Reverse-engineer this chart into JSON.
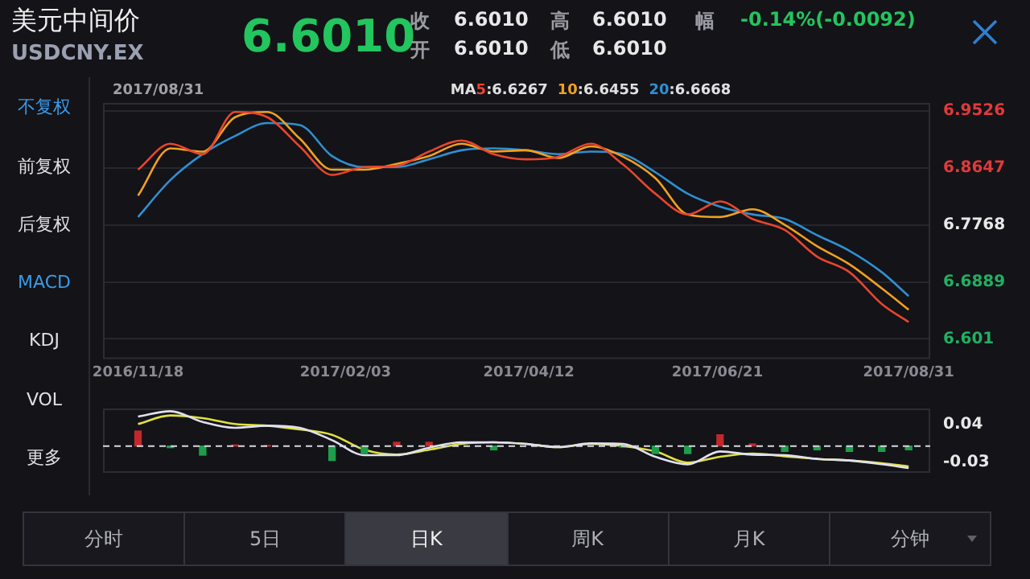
{
  "chart_data": [
    {
      "type": "other",
      "title": "美元中间价",
      "subtitle": "USDCNY.EX",
      "annotations": [
        "6.6010",
        "收",
        "6.6010",
        "高",
        "6.6010",
        "幅",
        "-0.14%(-0.0092)",
        "开",
        "6.6010",
        "低",
        "6.6010"
      ]
    },
    {
      "type": "other",
      "annotations": [
        "不复权",
        "前复权",
        "后复权",
        "MACD",
        "KDJ",
        "VOL",
        "更多"
      ]
    },
    {
      "type": "line",
      "x": [
        "2016-11-18",
        "2016-11-30",
        "2016-12-12",
        "2016-12-24",
        "2017-01-05",
        "2017-01-17",
        "2017-01-29",
        "2017-02-10",
        "2017-02-22",
        "2017-03-06",
        "2017-03-18",
        "2017-03-30",
        "2017-04-11",
        "2017-04-23",
        "2017-05-05",
        "2017-05-17",
        "2017-05-29",
        "2017-06-10",
        "2017-06-22",
        "2017-07-04",
        "2017-07-16",
        "2017-07-28",
        "2017-08-09",
        "2017-08-21",
        "2017-08-31"
      ],
      "xlim": [
        "2016-11-05",
        "2017-09-08"
      ],
      "xticks": [
        {
          "value": "2016-11-18",
          "label": "2016/11/18"
        },
        {
          "value": "2017-02-03",
          "label": "2017/02/03"
        },
        {
          "value": "2017-04-12",
          "label": "2017/04/12"
        },
        {
          "value": "2017-06-21",
          "label": "2017/06/21"
        },
        {
          "value": "2017-08-31",
          "label": "2017/08/31"
        }
      ],
      "ylim": [
        6.57,
        6.965
      ],
      "yticks": [
        6.601,
        6.6889,
        6.7768,
        6.8647,
        6.9526
      ],
      "grid": "y",
      "legend": "top",
      "legend_title": "MA",
      "annotations": [
        "2017/08/31",
        ":6.6267",
        ":6.6455",
        ":6.6668"
      ],
      "series": [
        {
          "name": "5",
          "color": "#e8452c",
          "values": [
            6.862,
            6.902,
            6.886,
            6.951,
            6.943,
            6.898,
            6.854,
            6.866,
            6.868,
            6.89,
            6.907,
            6.886,
            6.878,
            6.882,
            6.902,
            6.87,
            6.825,
            6.793,
            6.813,
            6.786,
            6.769,
            6.728,
            6.704,
            6.655,
            6.627
          ]
        },
        {
          "name": "10",
          "color": "#f0a020",
          "values": [
            6.822,
            6.895,
            6.89,
            6.943,
            6.951,
            6.91,
            6.862,
            6.862,
            6.871,
            6.883,
            6.902,
            6.89,
            6.892,
            6.88,
            6.898,
            6.882,
            6.849,
            6.793,
            6.789,
            6.801,
            6.777,
            6.744,
            6.716,
            6.679,
            6.646
          ]
        },
        {
          "name": "20",
          "color": "#2f8fd0",
          "values": [
            6.789,
            6.846,
            6.886,
            6.914,
            6.934,
            6.931,
            6.883,
            6.866,
            6.866,
            6.878,
            6.892,
            6.895,
            6.892,
            6.886,
            6.89,
            6.886,
            6.858,
            6.825,
            6.805,
            6.793,
            6.786,
            6.761,
            6.737,
            6.704,
            6.667
          ]
        }
      ]
    },
    {
      "type": "bar",
      "x": [
        "2016-11-18",
        "2016-11-30",
        "2016-12-12",
        "2016-12-24",
        "2017-01-05",
        "2017-01-17",
        "2017-01-29",
        "2017-02-10",
        "2017-02-22",
        "2017-03-06",
        "2017-03-18",
        "2017-03-30",
        "2017-04-11",
        "2017-04-23",
        "2017-05-05",
        "2017-05-17",
        "2017-05-29",
        "2017-06-10",
        "2017-06-22",
        "2017-07-04",
        "2017-07-16",
        "2017-07-28",
        "2017-08-09",
        "2017-08-21",
        "2017-08-31"
      ],
      "xlim": [
        "2016-11-05",
        "2017-09-08"
      ],
      "ylim": [
        -0.05,
        0.07
      ],
      "yticks": [
        -0.03,
        0.04
      ],
      "tick_labels": "y",
      "ref_lines": [
        {
          "axis": "y",
          "value": 0,
          "color": "#d8d8e0",
          "line_style": "dashed"
        }
      ],
      "series": [
        {
          "type": "bar",
          "colors": [
            "#c0282c",
            "#1e9e4a",
            "#1e9e4a",
            "#c0282c",
            "#c0282c",
            null,
            "#1e9e4a",
            "#1e9e4a",
            "#c0282c",
            "#c0282c",
            null,
            "#1e9e4a",
            null,
            null,
            null,
            "#1e9e4a",
            "#1e9e4a",
            "#1e9e4a",
            "#c0282c",
            "#c0282c",
            "#1e9e4a",
            "#1e9e4a",
            "#1e9e4a",
            "#1e9e4a",
            "#1e9e4a"
          ],
          "values": [
            0.028,
            -0.003,
            -0.017,
            0.002,
            0.001,
            0,
            -0.027,
            -0.014,
            0.007,
            0.007,
            0,
            -0.007,
            0,
            0,
            0,
            -0.002,
            -0.014,
            -0.014,
            0.021,
            0.004,
            -0.01,
            -0.007,
            -0.01,
            -0.01,
            -0.007
          ]
        },
        {
          "type": "line",
          "color": "#e0e0f0",
          "values": [
            0.055,
            0.065,
            0.045,
            0.034,
            0.038,
            0.034,
            0.011,
            -0.017,
            -0.017,
            -0.003,
            0.007,
            0.007,
            0.004,
            -0.002,
            0.005,
            0.004,
            -0.02,
            -0.034,
            -0.01,
            -0.016,
            -0.017,
            -0.024,
            -0.027,
            -0.034,
            -0.041
          ]
        },
        {
          "type": "line",
          "color": "#e0e040",
          "values": [
            0.041,
            0.057,
            0.052,
            0.041,
            0.038,
            0.031,
            0.021,
            -0.007,
            -0.016,
            -0.007,
            0.004,
            0.007,
            0.004,
            -0.002,
            0.004,
            0,
            -0.01,
            -0.031,
            -0.02,
            -0.014,
            -0.019,
            -0.024,
            -0.027,
            -0.032,
            -0.038
          ]
        }
      ]
    },
    {
      "type": "other",
      "annotations": [
        "分时",
        "5日",
        "日K",
        "周K",
        "月K",
        "分钟"
      ]
    }
  ]
}
